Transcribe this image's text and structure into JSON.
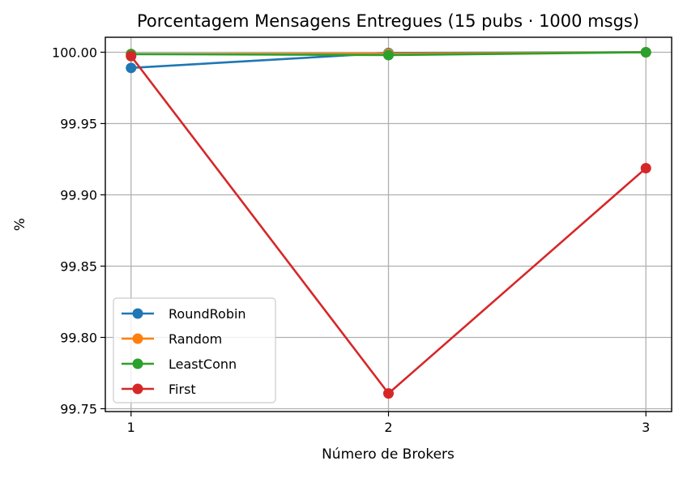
{
  "chart_data": {
    "type": "line",
    "title": "Porcentagem Mensagens Entregues (15 pubs · 1000 msgs)",
    "xlabel": "Número de Brokers",
    "ylabel": "%",
    "x": [
      1,
      2,
      3
    ],
    "xticks": [
      "1",
      "2",
      "3"
    ],
    "yticks": [
      "99.75",
      "99.80",
      "99.85",
      "99.90",
      "99.95",
      "100.00"
    ],
    "ylim": [
      99.748,
      100.0105
    ],
    "xlim": [
      0.9,
      3.1
    ],
    "grid": true,
    "legend_position": "lower-left",
    "series": [
      {
        "name": "RoundRobin",
        "color": "#1f77b4",
        "values": [
          99.989,
          99.9995,
          100.0
        ]
      },
      {
        "name": "Random",
        "color": "#ff7f0e",
        "values": [
          99.9987,
          99.999,
          100.0
        ]
      },
      {
        "name": "LeastConn",
        "color": "#2ca02c",
        "values": [
          99.9987,
          99.998,
          100.0
        ]
      },
      {
        "name": "First",
        "color": "#d62728",
        "values": [
          99.9973,
          99.7607,
          99.9187
        ]
      }
    ]
  }
}
